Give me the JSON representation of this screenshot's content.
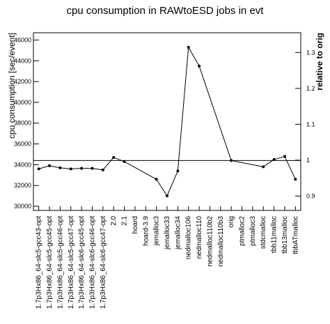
{
  "chart_data": {
    "type": "line",
    "title": "cpu consumption in RAWtoESD jobs in evt",
    "y_label": "cpu consumption [sec/event]",
    "y2_label": "relative to orig",
    "categories": [
      "1.7p3Hx86_64-slc5-gcc43-opt",
      "1.7p3Hx86_64-slc5-gcc45-opt",
      "1.7p3Hx86_64-slc5-gcc46-opt",
      "1.7p3Hx86_64-slc5-gcc47-opt",
      "1.7p3Hx86_64-slc6-gcc45-opt",
      "1.7p3Hx86_64-slc6-gcc46-opt",
      "1.7p3Hx86_64-slc6-gcc47-opt",
      "2.0",
      "2.1",
      "hoard",
      "hoard-3.9",
      "jemalloc3",
      "jemalloc33",
      "jemalloc34",
      "nedmalloc106",
      "nedmalloc110",
      "nedmalloc110b2",
      "nedmalloc110b3",
      "orig",
      "ptmalloc2",
      "ptmalloc3",
      "stdcmalloc",
      "tbb11malloc",
      "tbb13malloc",
      "tbbATmalloc"
    ],
    "series": [
      {
        "name": "cpu consumption",
        "color": "#000000",
        "values": [
          33600,
          33900,
          33700,
          33600,
          33650,
          33650,
          33500,
          34700,
          34300,
          null,
          null,
          32600,
          31000,
          33400,
          45300,
          43500,
          null,
          null,
          34400,
          null,
          null,
          33800,
          34500,
          34800,
          32600
        ]
      }
    ],
    "ylim": [
      29600,
      46700
    ],
    "yticks": [
      30000,
      32000,
      34000,
      36000,
      38000,
      40000,
      42000,
      44000,
      46000
    ],
    "y2lim": [
      0.86,
      1.355
    ],
    "y2ticks": [
      0.9,
      1,
      1.1,
      1.2,
      1.3
    ]
  }
}
